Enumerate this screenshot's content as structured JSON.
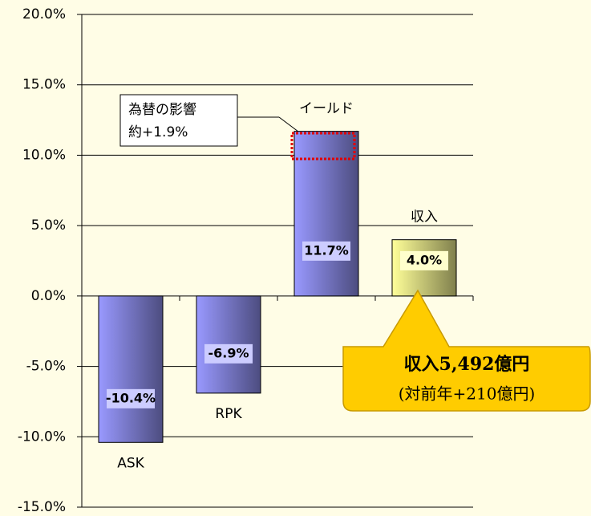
{
  "chart_data": {
    "type": "bar",
    "categories": [
      "ASK",
      "RPK",
      "イールド",
      "収入"
    ],
    "values": [
      -10.4,
      -6.9,
      11.7,
      4.0
    ],
    "value_labels": [
      "-10.4%",
      "-6.9%",
      "11.7%",
      "4.0%"
    ],
    "colors": [
      "#9999ff",
      "#9999ff",
      "#9999ff",
      "#ffff99"
    ],
    "ylim": [
      -15,
      20
    ],
    "yticks": [
      {
        "value": -15,
        "label": "-15.0%"
      },
      {
        "value": -10,
        "label": "-10.0%"
      },
      {
        "value": -5,
        "label": "-5.0%"
      },
      {
        "value": 0,
        "label": "0.0%"
      },
      {
        "value": 5,
        "label": "5.0%"
      },
      {
        "value": 10,
        "label": "10.0%"
      },
      {
        "value": 15,
        "label": "15.0%"
      },
      {
        "value": 20,
        "label": "20.0%"
      }
    ],
    "grid": true,
    "annotations": {
      "fx_note": [
        "為替の影響",
        "約+1.9%"
      ],
      "callout": [
        "収入5,492億円",
        "(対前年+210億円)"
      ]
    }
  }
}
